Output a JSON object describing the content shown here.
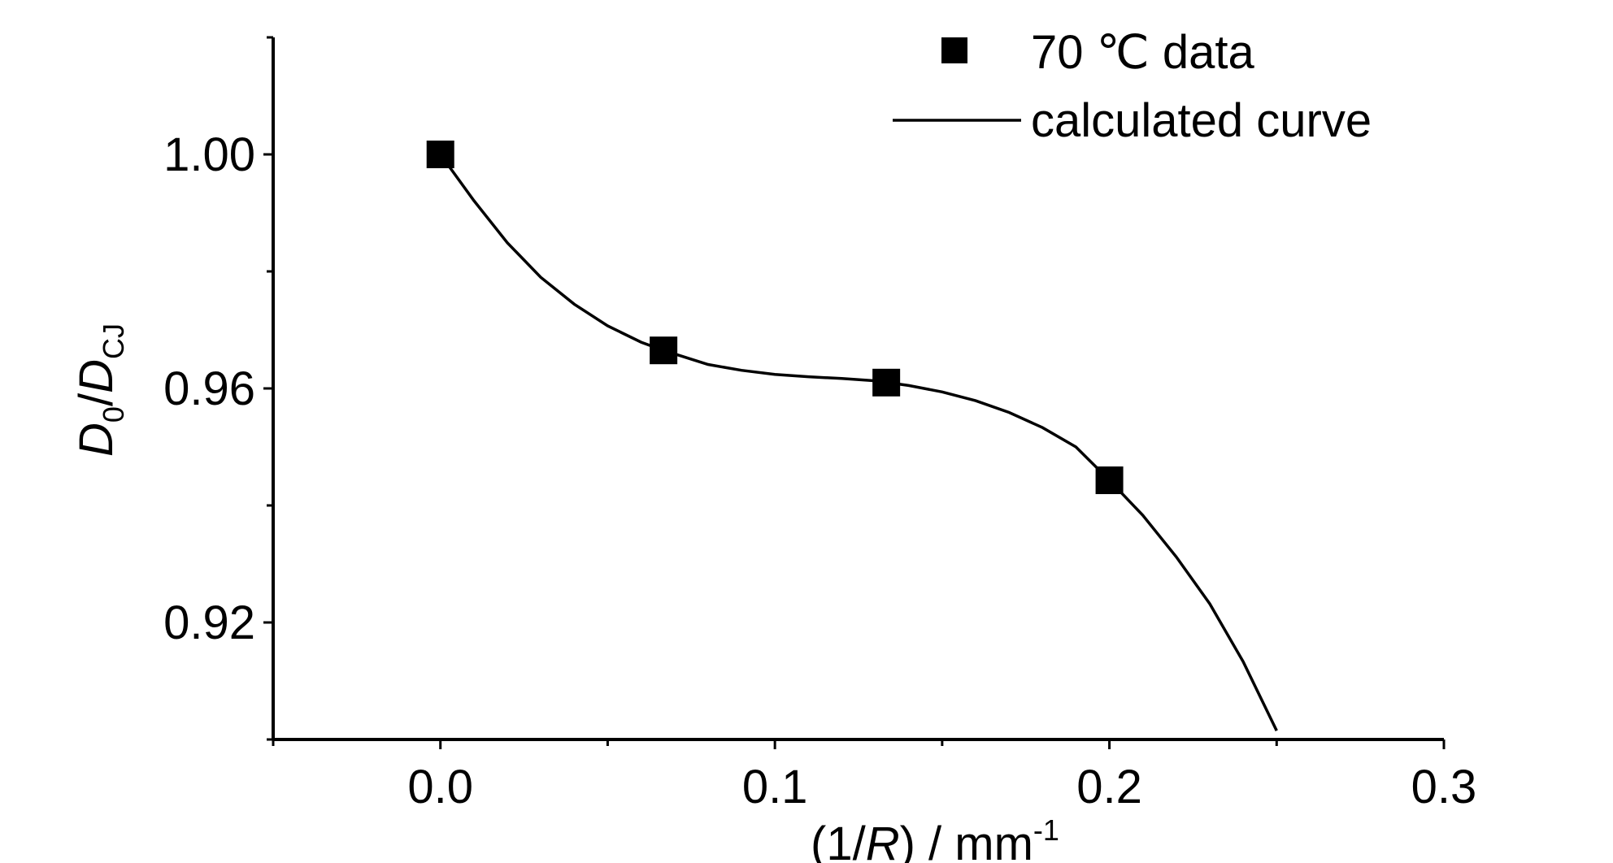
{
  "chart_data": {
    "type": "scatter",
    "xlabel_parts": {
      "open": "(1/",
      "italic": "R",
      "close": ") / mm",
      "sup": "-1"
    },
    "ylabel_parts": {
      "main1": "D",
      "sub1": "0",
      "slash": "/",
      "main2": "D",
      "sub2": "CJ"
    },
    "xlim": [
      -0.05,
      0.3
    ],
    "ylim": [
      0.9,
      1.02
    ],
    "x_ticks": [
      {
        "value": 0.0,
        "label": "0.0"
      },
      {
        "value": 0.1,
        "label": "0.1"
      },
      {
        "value": 0.2,
        "label": "0.2"
      },
      {
        "value": 0.3,
        "label": "0.3"
      }
    ],
    "x_minor_ticks": [
      -0.05,
      0.05,
      0.15,
      0.25
    ],
    "y_ticks": [
      {
        "value": 0.92,
        "label": "0.92"
      },
      {
        "value": 0.96,
        "label": "0.96"
      },
      {
        "value": 1.0,
        "label": "1.00"
      }
    ],
    "y_minor_ticks": [
      0.9,
      0.94,
      0.98,
      1.02
    ],
    "grid": false,
    "legend_position": "top-right",
    "series": [
      {
        "name": "70 ℃ data",
        "kind": "markers",
        "marker": "square",
        "color": "#000000",
        "points": [
          {
            "x": 0.0,
            "y": 1.0
          },
          {
            "x": 0.0667,
            "y": 0.9665
          },
          {
            "x": 0.1333,
            "y": 0.961
          },
          {
            "x": 0.2,
            "y": 0.9443
          }
        ]
      },
      {
        "name": "calculated curve",
        "kind": "line",
        "color": "#000000",
        "points": [
          {
            "x": 0.0,
            "y": 1.0
          },
          {
            "x": 0.01,
            "y": 0.9921
          },
          {
            "x": 0.02,
            "y": 0.9849
          },
          {
            "x": 0.03,
            "y": 0.979
          },
          {
            "x": 0.04,
            "y": 0.9744
          },
          {
            "x": 0.05,
            "y": 0.9707
          },
          {
            "x": 0.06,
            "y": 0.9679
          },
          {
            "x": 0.0667,
            "y": 0.9665
          },
          {
            "x": 0.08,
            "y": 0.9641
          },
          {
            "x": 0.09,
            "y": 0.9631
          },
          {
            "x": 0.1,
            "y": 0.9624
          },
          {
            "x": 0.11,
            "y": 0.962
          },
          {
            "x": 0.12,
            "y": 0.9617
          },
          {
            "x": 0.13,
            "y": 0.9613
          },
          {
            "x": 0.14,
            "y": 0.9605
          },
          {
            "x": 0.15,
            "y": 0.9594
          },
          {
            "x": 0.16,
            "y": 0.9579
          },
          {
            "x": 0.17,
            "y": 0.9559
          },
          {
            "x": 0.18,
            "y": 0.9533
          },
          {
            "x": 0.19,
            "y": 0.95
          },
          {
            "x": 0.2,
            "y": 0.9443
          },
          {
            "x": 0.21,
            "y": 0.9383
          },
          {
            "x": 0.22,
            "y": 0.9312
          },
          {
            "x": 0.23,
            "y": 0.9232
          },
          {
            "x": 0.24,
            "y": 0.9133
          },
          {
            "x": 0.25,
            "y": 0.9015
          }
        ]
      }
    ]
  }
}
